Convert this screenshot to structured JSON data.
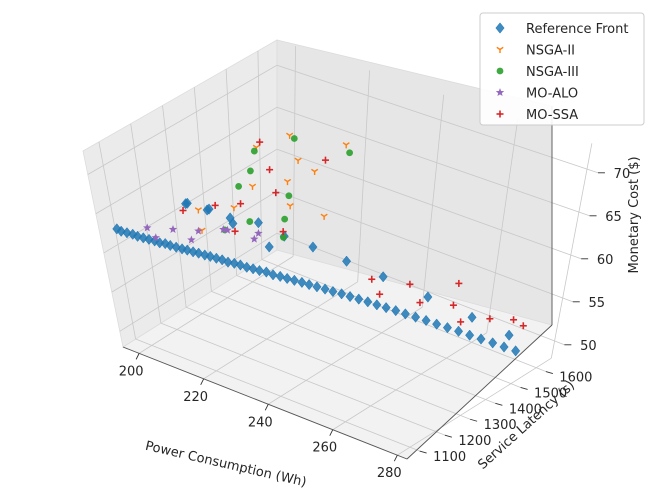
{
  "chart_data": {
    "type": "scatter",
    "projection": "3d",
    "xlabel": "Power Consumption (Wh)",
    "ylabel": "Service Latency (s)",
    "zlabel": "Monetary Cost ($)",
    "x_ticks": [
      200,
      220,
      240,
      260,
      280
    ],
    "y_ticks": [
      1100,
      1200,
      1300,
      1400,
      1500,
      1600
    ],
    "z_ticks": [
      50,
      55,
      60,
      65,
      70
    ],
    "xlim": [
      195,
      283
    ],
    "ylim": [
      1050,
      1660
    ],
    "zlim": [
      48,
      73
    ],
    "grid": true,
    "legend_position": "top-right",
    "series": [
      {
        "name": "Reference Front",
        "marker": "diamond",
        "color": "#1f77b4",
        "points": [
          [
            197.5,
            1080,
            62.8
          ],
          [
            198.2,
            1085,
            62.5
          ],
          [
            198.9,
            1095,
            62.2
          ],
          [
            199.6,
            1105,
            61.9
          ],
          [
            200.3,
            1112,
            61.6
          ],
          [
            201.0,
            1122,
            61.3
          ],
          [
            201.7,
            1132,
            61.0
          ],
          [
            202.4,
            1142,
            60.7
          ],
          [
            203.1,
            1150,
            60.4
          ],
          [
            203.8,
            1160,
            60.2
          ],
          [
            204.5,
            1168,
            59.9
          ],
          [
            205.3,
            1178,
            59.6
          ],
          [
            206.1,
            1188,
            59.3
          ],
          [
            206.9,
            1196,
            59.1
          ],
          [
            207.7,
            1206,
            58.8
          ],
          [
            208.6,
            1214,
            58.6
          ],
          [
            209.5,
            1224,
            58.3
          ],
          [
            210.4,
            1232,
            58.1
          ],
          [
            211.3,
            1242,
            57.8
          ],
          [
            212.3,
            1250,
            57.6
          ],
          [
            213.3,
            1258,
            57.3
          ],
          [
            214.3,
            1268,
            57.1
          ],
          [
            215.4,
            1276,
            56.9
          ],
          [
            216.5,
            1285,
            56.6
          ],
          [
            217.6,
            1294,
            56.4
          ],
          [
            218.8,
            1302,
            56.2
          ],
          [
            220.0,
            1312,
            56.0
          ],
          [
            221.3,
            1320,
            55.7
          ],
          [
            222.6,
            1330,
            55.5
          ],
          [
            224.0,
            1338,
            55.3
          ],
          [
            225.4,
            1347,
            55.1
          ],
          [
            226.9,
            1356,
            54.9
          ],
          [
            228.4,
            1364,
            54.7
          ],
          [
            230.0,
            1373,
            54.5
          ],
          [
            231.7,
            1382,
            54.3
          ],
          [
            233.4,
            1390,
            54.1
          ],
          [
            235.2,
            1400,
            53.9
          ],
          [
            237.1,
            1408,
            53.7
          ],
          [
            239.0,
            1417,
            53.5
          ],
          [
            241.0,
            1426,
            53.3
          ],
          [
            243.1,
            1434,
            53.1
          ],
          [
            245.2,
            1443,
            52.9
          ],
          [
            247.4,
            1452,
            52.7
          ],
          [
            249.7,
            1460,
            52.5
          ],
          [
            252.1,
            1469,
            52.3
          ],
          [
            254.6,
            1478,
            52.1
          ],
          [
            257.2,
            1486,
            51.9
          ],
          [
            259.8,
            1495,
            51.7
          ],
          [
            262.5,
            1504,
            51.5
          ],
          [
            265.3,
            1512,
            51.3
          ],
          [
            268.1,
            1521,
            51.1
          ],
          [
            271.0,
            1530,
            50.9
          ],
          [
            273.9,
            1538,
            50.7
          ],
          [
            276.8,
            1547,
            50.5
          ],
          [
            199.0,
            1300,
            61.5
          ],
          [
            202.0,
            1330,
            60.5
          ],
          [
            206.0,
            1360,
            59.5
          ],
          [
            210.0,
            1410,
            58.5
          ],
          [
            215.0,
            1440,
            57.0
          ],
          [
            221.0,
            1470,
            56.0
          ],
          [
            229.0,
            1495,
            55.0
          ],
          [
            238.0,
            1520,
            54.0
          ],
          [
            250.0,
            1540,
            53.0
          ],
          [
            262.0,
            1560,
            52.0
          ],
          [
            272.0,
            1580,
            51.0
          ],
          [
            204.0,
            1240,
            63.5
          ],
          [
            208.0,
            1270,
            62.8
          ],
          [
            212.0,
            1300,
            61.0
          ],
          [
            218.0,
            1350,
            58.0
          ]
        ]
      },
      {
        "name": "NSGA-II",
        "marker": "tri_down",
        "color": "#ff7f0e",
        "points": [
          [
            206,
            1460,
            66.0
          ],
          [
            212,
            1500,
            67.5
          ],
          [
            218,
            1420,
            64.5
          ],
          [
            222,
            1380,
            63.0
          ],
          [
            210,
            1330,
            62.0
          ],
          [
            226,
            1520,
            68.0
          ],
          [
            203,
            1290,
            61.5
          ],
          [
            216,
            1480,
            65.5
          ],
          [
            230,
            1400,
            62.5
          ],
          [
            208,
            1240,
            60.8
          ],
          [
            214,
            1350,
            64.8
          ],
          [
            224,
            1440,
            66.2
          ]
        ]
      },
      {
        "name": "NSGA-III",
        "marker": "circle",
        "color": "#2ca02c",
        "points": [
          [
            208,
            1430,
            66.5
          ],
          [
            215,
            1480,
            68.0
          ],
          [
            220,
            1400,
            63.5
          ],
          [
            227,
            1520,
            67.2
          ],
          [
            210,
            1350,
            64.2
          ],
          [
            217,
            1300,
            62.0
          ],
          [
            213,
            1260,
            61.2
          ],
          [
            222,
            1360,
            61.8
          ],
          [
            224,
            1330,
            60.5
          ],
          [
            211,
            1380,
            65.6
          ]
        ]
      },
      {
        "name": "MO-ALO",
        "marker": "star",
        "color": "#9467bd",
        "points": [
          [
            200,
            1150,
            61.8
          ],
          [
            203,
            1200,
            61.0
          ],
          [
            206,
            1250,
            60.2
          ],
          [
            209,
            1300,
            59.8
          ],
          [
            212,
            1280,
            60.6
          ],
          [
            215,
            1350,
            59.2
          ],
          [
            205,
            1120,
            62.0
          ],
          [
            210,
            1180,
            61.2
          ],
          [
            218,
            1300,
            60.0
          ]
        ]
      },
      {
        "name": "MO-SSA",
        "marker": "plus",
        "color": "#d62728",
        "points": [
          [
            207,
            1460,
            66.8
          ],
          [
            213,
            1420,
            65.2
          ],
          [
            218,
            1380,
            64.0
          ],
          [
            222,
            1500,
            66.0
          ],
          [
            203,
            1240,
            62.5
          ],
          [
            209,
            1280,
            63.2
          ],
          [
            216,
            1260,
            61.5
          ],
          [
            212,
            1330,
            62.8
          ],
          [
            224,
            1330,
            61.2
          ],
          [
            244,
            1400,
            57.0
          ],
          [
            248,
            1380,
            56.2
          ],
          [
            256,
            1430,
            55.4
          ],
          [
            262,
            1480,
            55.0
          ],
          [
            266,
            1460,
            54.0
          ],
          [
            270,
            1520,
            53.8
          ],
          [
            274,
            1560,
            53.5
          ],
          [
            260,
            1520,
            56.5
          ],
          [
            252,
            1440,
            56.8
          ],
          [
            276,
            1575,
            52.8
          ]
        ]
      }
    ]
  }
}
